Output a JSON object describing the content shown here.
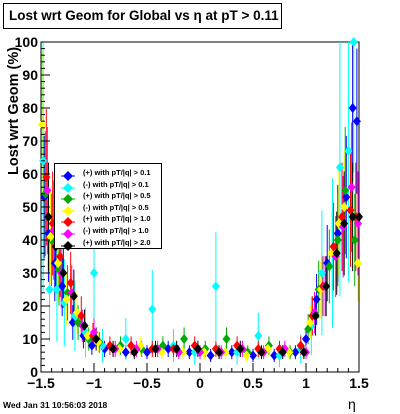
{
  "title": "Lost wrt Geom for Global vs  η at pT > 0.11",
  "timestamp": "Wed Jan 31 10:56:03 2018",
  "chart_data": {
    "type": "scatter",
    "title": "Lost wrt Geom for Global vs  η at pT > 0.11",
    "xlabel": "η",
    "ylabel": "Lost wrt Geom (%)",
    "xlim": [
      -1.5,
      1.5
    ],
    "ylim": [
      0,
      100
    ],
    "x_ticks": [
      "−1.5",
      "−1",
      "−0.5",
      "0",
      "0.5",
      "1",
      "1.5"
    ],
    "y_ticks": [
      "0",
      "10",
      "20",
      "30",
      "40",
      "50",
      "60",
      "70",
      "80",
      "90",
      "100"
    ],
    "legend_position": "middle-left",
    "grid": false,
    "series": [
      {
        "name": "(+) with pT/|q| > 0.1",
        "color": "#0000ff",
        "marker": "diamond",
        "x": [
          -1.47,
          -1.43,
          -1.37,
          -1.3,
          -1.2,
          -1.1,
          -1.02,
          -0.9,
          -0.7,
          -0.5,
          -0.3,
          -0.1,
          0.1,
          0.3,
          0.5,
          0.7,
          0.9,
          1.0,
          1.1,
          1.2,
          1.3,
          1.38,
          1.44,
          1.48
        ],
        "y": [
          53,
          42,
          33,
          26,
          15,
          11,
          8,
          7,
          6,
          6,
          7,
          6,
          5,
          6,
          5,
          5,
          6,
          10,
          22,
          33,
          42,
          53,
          80,
          76
        ]
      },
      {
        "name": "(-) with pT/|q| > 0.1",
        "color": "#00ffff",
        "marker": "diamond",
        "x": [
          -1.48,
          -1.42,
          -1.35,
          -1.28,
          -1.18,
          -1.08,
          -1.0,
          -0.92,
          -0.7,
          -0.45,
          -0.25,
          -0.05,
          0.15,
          0.35,
          0.55,
          0.75,
          0.95,
          1.05,
          1.15,
          1.25,
          1.32,
          1.4,
          1.45
        ],
        "y": [
          64,
          25,
          25,
          21,
          17,
          12,
          30,
          8,
          10,
          19,
          8,
          6,
          26,
          6,
          11,
          5,
          7,
          14,
          30,
          36,
          62,
          67,
          100
        ]
      },
      {
        "name": "(+) with pT/|q| > 0.5",
        "color": "#00aa00",
        "marker": "diamond",
        "x": [
          -1.46,
          -1.4,
          -1.33,
          -1.25,
          -1.15,
          -1.05,
          -0.95,
          -0.75,
          -0.55,
          -0.35,
          -0.15,
          0.05,
          0.25,
          0.45,
          0.65,
          0.85,
          1.02,
          1.12,
          1.22,
          1.3,
          1.37,
          1.46
        ],
        "y": [
          54,
          40,
          31,
          24,
          15,
          10,
          9,
          8,
          7,
          8,
          10,
          7,
          10,
          6,
          8,
          6,
          13,
          25,
          32,
          40,
          55,
          40
        ]
      },
      {
        "name": "(-) with pT/|q| > 0.5",
        "color": "#ffff00",
        "marker": "diamond",
        "x": [
          -1.49,
          -1.41,
          -1.34,
          -1.26,
          -1.16,
          -1.06,
          -0.96,
          -0.76,
          -0.56,
          -0.36,
          -0.16,
          0.04,
          0.24,
          0.44,
          0.64,
          0.84,
          1.04,
          1.14,
          1.24,
          1.31,
          1.36,
          1.49
        ],
        "y": [
          75,
          41,
          33,
          22,
          18,
          11,
          9,
          7,
          8,
          6,
          6,
          6,
          6,
          5,
          7,
          6,
          15,
          25,
          36,
          45,
          50,
          33
        ]
      },
      {
        "name": "(+) with pT/|q| > 1.0",
        "color": "#ff0000",
        "marker": "diamond",
        "x": [
          -1.45,
          -1.39,
          -1.32,
          -1.22,
          -1.12,
          -1.01,
          -0.85,
          -0.65,
          -0.45,
          -0.25,
          -0.05,
          0.15,
          0.35,
          0.55,
          0.75,
          0.95,
          1.06,
          1.16,
          1.26,
          1.34,
          1.42,
          1.47
        ],
        "y": [
          59,
          45,
          35,
          27,
          17,
          11,
          8,
          8,
          7,
          7,
          8,
          7,
          8,
          7,
          7,
          8,
          17,
          26,
          38,
          47,
          49,
          47
        ]
      },
      {
        "name": "(-) with pT/|q| > 1.0",
        "color": "#ff00ff",
        "marker": "diamond",
        "x": [
          -1.44,
          -1.38,
          -1.31,
          -1.21,
          -1.11,
          -1.0,
          -0.8,
          -0.6,
          -0.4,
          -0.2,
          0.0,
          0.2,
          0.4,
          0.6,
          0.8,
          1.0,
          1.08,
          1.18,
          1.28,
          1.35,
          1.43,
          1.49
        ],
        "y": [
          55,
          43,
          30,
          24,
          14,
          12,
          7,
          7,
          7,
          6,
          6,
          6,
          7,
          6,
          7,
          6,
          18,
          26,
          35,
          44,
          56,
          45
        ]
      },
      {
        "name": "(+) with pT/|q| > 2.0",
        "color": "#000000",
        "marker": "diamond",
        "x": [
          -1.43,
          -1.36,
          -1.29,
          -1.19,
          -1.09,
          -0.98,
          -0.82,
          -0.62,
          -0.42,
          -0.22,
          -0.02,
          0.18,
          0.38,
          0.58,
          0.78,
          0.98,
          1.09,
          1.19,
          1.29,
          1.36,
          1.44,
          1.5
        ],
        "y": [
          47,
          38,
          30,
          23,
          14,
          10,
          7,
          6,
          7,
          7,
          7,
          6,
          7,
          6,
          6,
          6,
          17,
          26,
          36,
          45,
          47,
          47
        ]
      }
    ]
  }
}
